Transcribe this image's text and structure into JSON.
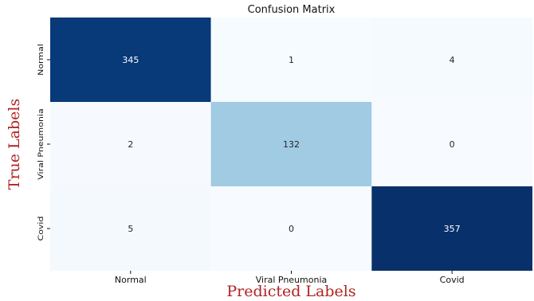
{
  "chart_data": {
    "type": "heatmap",
    "title": "Confusion Matrix",
    "xlabel": "Predicted Labels",
    "ylabel": "True Labels",
    "x_categories": [
      "Normal",
      "Viral Pneumonia",
      "Covid"
    ],
    "y_categories": [
      "Normal",
      "Viral Pneumonia",
      "Covid"
    ],
    "values": [
      [
        345,
        1,
        4
      ],
      [
        2,
        132,
        0
      ],
      [
        5,
        0,
        357
      ]
    ],
    "colormap": "Blues",
    "value_range": [
      0,
      357
    ],
    "colors": {
      "low": "#f7fbff",
      "high": "#08306b",
      "axis_label": "#b22222"
    }
  }
}
